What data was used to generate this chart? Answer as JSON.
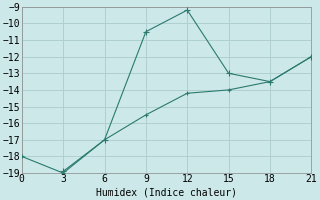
{
  "xlabel": "Humidex (Indice chaleur)",
  "ylabel": "",
  "background_color": "#cde8e8",
  "grid_color": "#b0d0d0",
  "line_color": "#2a7a6e",
  "xlim": [
    0,
    21
  ],
  "ylim": [
    -19,
    -9
  ],
  "xticks": [
    0,
    3,
    6,
    9,
    12,
    15,
    18,
    21
  ],
  "yticks": [
    -19,
    -18,
    -17,
    -16,
    -15,
    -14,
    -13,
    -12,
    -11,
    -10,
    -9
  ],
  "line1_x": [
    0,
    3,
    6,
    9,
    12,
    15,
    18,
    21
  ],
  "line1_y": [
    -18.0,
    -19.0,
    -17.0,
    -15.5,
    -14.2,
    -14.0,
    -13.5,
    -12.0
  ],
  "line2_x": [
    3,
    6,
    9,
    12,
    15,
    18,
    21
  ],
  "line2_y": [
    -18.9,
    -17.0,
    -10.5,
    -9.2,
    -13.0,
    -13.5,
    -12.0
  ]
}
